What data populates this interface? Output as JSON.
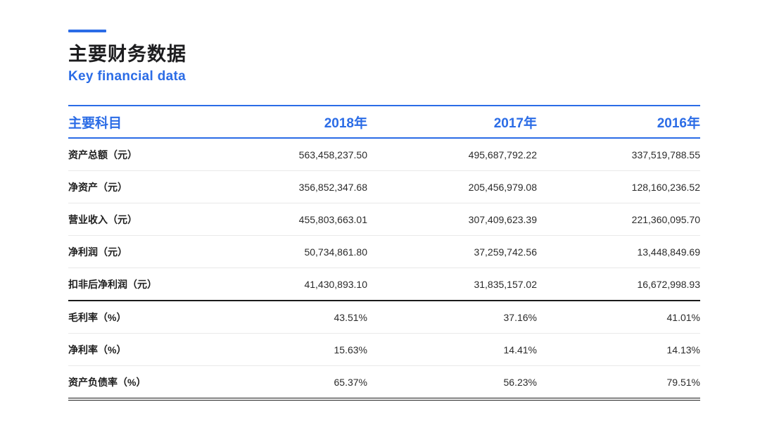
{
  "header": {
    "title": "主要财务数据",
    "subtitle": "Key financial data"
  },
  "theme": {
    "accent_blue": "#2b6ce6",
    "dark_text": "#1d1d1f",
    "light_divider": "#e9e9e9",
    "dark_divider": "#1a1a1a"
  },
  "table": {
    "columns": [
      "主要科目",
      "2018年",
      "2017年",
      "2016年"
    ],
    "rows": [
      {
        "label": "资产总额（元）",
        "values": [
          "563,458,237.50",
          "495,687,792.22",
          "337,519,788.55"
        ]
      },
      {
        "label": "净资产（元）",
        "values": [
          "356,852,347.68",
          "205,456,979.08",
          "128,160,236.52"
        ]
      },
      {
        "label": "营业收入（元）",
        "values": [
          "455,803,663.01",
          "307,409,623.39",
          "221,360,095.70"
        ]
      },
      {
        "label": "净利润（元）",
        "values": [
          "50,734,861.80",
          "37,259,742.56",
          "13,448,849.69"
        ]
      },
      {
        "label": "扣非后净利润（元）",
        "values": [
          "41,430,893.10",
          "31,835,157.02",
          "16,672,998.93"
        ]
      },
      {
        "label": "毛利率（%）",
        "values": [
          "43.51%",
          "37.16%",
          "41.01%"
        ]
      },
      {
        "label": "净利率（%）",
        "values": [
          "15.63%",
          "14.41%",
          "14.13%"
        ]
      },
      {
        "label": "资产负债率（%）",
        "values": [
          "65.37%",
          "56.23%",
          "79.51%"
        ]
      }
    ]
  }
}
